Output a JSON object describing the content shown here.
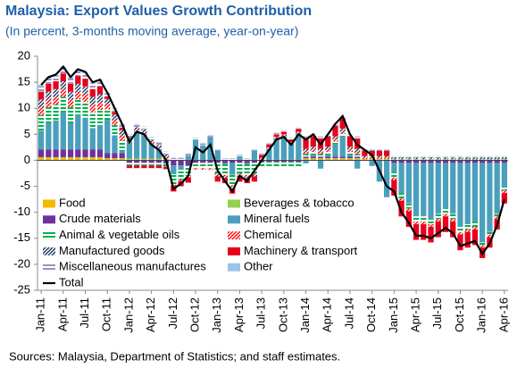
{
  "chart_data": {
    "type": "bar",
    "title": "Malaysia: Export Values Growth Contribution",
    "subtitle": "(In percent, 3-months moving average, year-on-year)",
    "source": "Sources: Malaysia, Department of Statistics; and staff estimates.",
    "stacked": true,
    "legend": "lower left",
    "ylim": [
      -25,
      20
    ],
    "yticks": [
      -25,
      -20,
      -15,
      -10,
      -5,
      0,
      5,
      10,
      15,
      20
    ],
    "categories": [
      "Jan-11",
      null,
      null,
      "Apr-11",
      null,
      null,
      "Jul-11",
      null,
      null,
      "Oct-11",
      null,
      null,
      "Jan-12",
      null,
      null,
      "Apr-12",
      null,
      null,
      "Jul-12",
      null,
      null,
      "Oct-12",
      null,
      null,
      "Jan-13",
      null,
      null,
      "Apr-13",
      null,
      null,
      "Jul-13",
      null,
      null,
      "Oct-13",
      null,
      null,
      "Jan-14",
      null,
      null,
      "Apr-14",
      null,
      null,
      "Jul-14",
      null,
      null,
      "Oct-14",
      null,
      null,
      "Jan-15",
      null,
      null,
      "Apr-15",
      null,
      null,
      "Jul-15",
      null,
      null,
      "Oct-15",
      null,
      null,
      "Jan-16",
      null,
      null,
      "Apr-16"
    ],
    "series": [
      {
        "name": "Food",
        "color": "#f5b800",
        "values": [
          0.5,
          0.5,
          0.5,
          0.5,
          0.5,
          0.5,
          0.5,
          0.5,
          0.5,
          0.3,
          0.3,
          0.3,
          0.2,
          0.2,
          0.2,
          0.2,
          0.2,
          0.2,
          0,
          0,
          0,
          0,
          0,
          0,
          0,
          0,
          0,
          0,
          0,
          0,
          0,
          0,
          0,
          0,
          0,
          0,
          0.3,
          0.3,
          0.3,
          0.3,
          0.3,
          0.3,
          0.3,
          0.3,
          0.2,
          0.2,
          0.2,
          0.2,
          0.1,
          0.1,
          0.1,
          0.1,
          0.1,
          0.1,
          0.1,
          0.1,
          0.1,
          0.1,
          0.1,
          0.1,
          0.1,
          0.1,
          0.1,
          0.1
        ]
      },
      {
        "name": "Beverages & tobacco",
        "color": "#92d050",
        "values": [
          0.1,
          0.1,
          0.1,
          0.1,
          0.1,
          0.1,
          0.1,
          0.1,
          0.1,
          0.1,
          0.1,
          0.1,
          0.1,
          0.1,
          0.1,
          0.1,
          0.1,
          0.1,
          0.1,
          0.1,
          0.1,
          0.1,
          0.1,
          0.1,
          0.1,
          0.1,
          0.1,
          0.1,
          0.1,
          0.1,
          0.1,
          0.1,
          0.1,
          0.1,
          0.1,
          0.1,
          0.1,
          0.1,
          0.1,
          0.1,
          0.1,
          0.1,
          0.1,
          0.1,
          0.1,
          0.1,
          0.1,
          0.1,
          0.1,
          0.1,
          0.1,
          0.1,
          0.1,
          0.1,
          0.1,
          0.1,
          0.1,
          0.1,
          0.1,
          0.1,
          0.1,
          0.1,
          0.1,
          0.1
        ]
      },
      {
        "name": "Crude materials",
        "color": "#7030a0",
        "values": [
          1.5,
          1.5,
          1.5,
          1.5,
          1.5,
          1.5,
          1.5,
          1.5,
          1.5,
          1,
          1,
          1,
          -0.5,
          -0.5,
          -0.5,
          -0.5,
          -0.5,
          -0.5,
          -1,
          -1,
          -1,
          -0.5,
          -0.5,
          -0.5,
          -0.5,
          -0.5,
          -0.5,
          -0.5,
          -0.5,
          -0.5,
          -0.3,
          -0.3,
          -0.3,
          -0.3,
          -0.3,
          -0.3,
          0.3,
          0.3,
          0.3,
          0.3,
          0.3,
          0.3,
          0.3,
          0.3,
          0,
          0,
          0,
          0,
          -0.5,
          -0.5,
          -0.5,
          -0.5,
          -0.5,
          -0.5,
          -0.5,
          -0.5,
          -0.5,
          -0.5,
          -0.5,
          -0.5,
          -0.5,
          -0.5,
          -0.5,
          -0.5
        ]
      },
      {
        "name": "Mineral fuels",
        "color": "#4a9fbd",
        "values": [
          3.6,
          5.1,
          5.6,
          7.1,
          5.1,
          6.6,
          6.1,
          4.1,
          4.6,
          6.4,
          3.4,
          0.4,
          3.3,
          5.3,
          4.8,
          2.8,
          1.8,
          -0.2,
          -1.7,
          -0.7,
          0.8,
          3.8,
          2.8,
          4.3,
          1.7,
          -0.3,
          -2.3,
          0.7,
          -0.3,
          1.7,
          0.1,
          2.1,
          4.1,
          4.6,
          3.1,
          5.1,
          -0.6,
          0.4,
          -1.6,
          0.4,
          2.4,
          3.9,
          0.4,
          -1.6,
          -0.1,
          -1.1,
          -4.1,
          -7.1,
          -1.8,
          -5.8,
          -7.8,
          -10.3,
          -10.3,
          -10.8,
          -9.8,
          -8.8,
          -9.8,
          -12.3,
          -11.8,
          -11.3,
          -15.3,
          -13.3,
          -9.8,
          -4.8
        ]
      },
      {
        "name": "Animal & vegetable oils",
        "color": "#00b050",
        "pattern": "horizontal",
        "values": [
          3,
          3,
          3,
          3,
          3,
          3,
          3,
          3,
          3,
          2,
          2,
          2,
          -0.5,
          -0.5,
          -0.5,
          -0.5,
          -0.5,
          -0.5,
          -2,
          -2,
          -2,
          -1,
          -1,
          -1,
          -2,
          -2,
          -2,
          -2,
          -2,
          -2,
          -1,
          -1,
          -1,
          -1,
          -1,
          -1,
          0.5,
          0.5,
          0.5,
          0.5,
          0.5,
          0.5,
          0.5,
          0.5,
          0,
          0,
          0,
          0,
          -1,
          -1,
          -1,
          -1,
          -1,
          -1,
          -1,
          -1,
          -1,
          -1,
          -1,
          -1,
          -0.5,
          -0.5,
          -0.5,
          -0.5
        ]
      },
      {
        "name": "Chemical",
        "color": "#ff0000",
        "pattern": "diagonal",
        "values": [
          1.5,
          1.5,
          1.5,
          1.5,
          1.5,
          1.5,
          1.5,
          1.5,
          1.5,
          1,
          1,
          1,
          0.3,
          0.3,
          0.3,
          0.3,
          0.3,
          0.3,
          -0.3,
          -0.3,
          -0.3,
          -0.3,
          -0.3,
          -0.3,
          -0.3,
          -0.3,
          -0.3,
          -0.3,
          -0.3,
          -0.3,
          0.3,
          0.3,
          0.3,
          0.3,
          0.3,
          0.3,
          0.5,
          0.5,
          0.5,
          0.5,
          0.5,
          0.5,
          0.5,
          0.5,
          0.2,
          0.2,
          0.2,
          0.2,
          -0.5,
          -0.5,
          -0.5,
          -0.5,
          -0.5,
          -0.5,
          -0.5,
          -0.5,
          -0.5,
          -0.5,
          -0.5,
          -0.5,
          -0.5,
          -0.5,
          -0.5,
          -0.5
        ]
      },
      {
        "name": "Manufactured goods",
        "color": "#1f3864",
        "pattern": "diagonal",
        "values": [
          1.5,
          1.5,
          1.5,
          1.5,
          1.5,
          1.5,
          1.5,
          1.5,
          1.5,
          1,
          1,
          1,
          0.5,
          0.5,
          0.5,
          0.5,
          0.5,
          0.5,
          0,
          0,
          0,
          0,
          0,
          0,
          -0.3,
          -0.3,
          -0.3,
          -0.3,
          -0.3,
          -0.3,
          0,
          0,
          0,
          0,
          0,
          0,
          0.5,
          0.5,
          0.5,
          0.5,
          0.5,
          0.5,
          0.5,
          0.5,
          0.3,
          0.3,
          0.3,
          0.3,
          0.3,
          0.3,
          0.3,
          0.3,
          0.3,
          0.3,
          0.3,
          0.3,
          0.3,
          0.3,
          0.3,
          0.3,
          0.3,
          0.3,
          0.3,
          0.3
        ]
      },
      {
        "name": "Machinery & transport",
        "color": "#e8001c",
        "values": [
          1.5,
          1.5,
          1.5,
          1.5,
          1.5,
          1.5,
          1.5,
          1.5,
          1.5,
          0.5,
          0.5,
          0.5,
          -0.5,
          -0.5,
          -0.5,
          -0.5,
          -0.5,
          -0.5,
          -1,
          -1,
          -1,
          0,
          0,
          0,
          -1,
          -1,
          -1,
          -1,
          -1,
          -1,
          0.5,
          0.5,
          0.5,
          0.5,
          0.5,
          0.5,
          2,
          2,
          2,
          2,
          2,
          2,
          2,
          2,
          1,
          1,
          1,
          1,
          -3,
          -3,
          -3,
          -3,
          -3,
          -3,
          -3,
          -3,
          -3,
          -3,
          -3,
          -3,
          -2,
          -2,
          -2,
          -2
        ]
      },
      {
        "name": "Miscellaneous manufactures",
        "color": "#9a8fc4",
        "pattern": "horizontal",
        "values": [
          1,
          1,
          1,
          1,
          1,
          1,
          1,
          1,
          1,
          0.5,
          0.5,
          0.5,
          0.5,
          0.5,
          0.5,
          0.5,
          0.5,
          0.5,
          0.3,
          0.3,
          0.3,
          0.3,
          0.3,
          0.3,
          0.2,
          0.2,
          0.2,
          0.2,
          0.2,
          0.2,
          0.2,
          0.2,
          0.2,
          0.2,
          0.2,
          0.2,
          0.3,
          0.3,
          0.3,
          0.3,
          0.3,
          0.3,
          0.3,
          0.3,
          0.2,
          0.2,
          0.2,
          0.2,
          0.2,
          0.2,
          0.2,
          0.2,
          0.2,
          0.2,
          0.2,
          0.2,
          0.2,
          0.2,
          0.2,
          0.2,
          0.2,
          0.2,
          0.2,
          0.2
        ]
      },
      {
        "name": "Other",
        "color": "#9dc3e6",
        "values": [
          0.3,
          0.3,
          0.3,
          0.3,
          0.3,
          0.3,
          0.3,
          0.3,
          0.3,
          0.2,
          0.2,
          0.2,
          0.1,
          0.1,
          0.1,
          0.1,
          0.1,
          0.1,
          0.1,
          0.1,
          0.1,
          0.1,
          0.1,
          0.1,
          0.1,
          0.1,
          0.1,
          0.1,
          0.1,
          0.1,
          0.1,
          0.1,
          0.1,
          0.1,
          0.1,
          0.1,
          0.1,
          0.1,
          0.1,
          0.1,
          0.1,
          0.1,
          0.1,
          0.1,
          0.1,
          0.1,
          0.1,
          0.1,
          0.1,
          0.1,
          0.1,
          0.1,
          0.1,
          0.1,
          0.1,
          0.1,
          0.1,
          0.1,
          0.1,
          0.1,
          0.1,
          0.1,
          0.1,
          0.1
        ]
      },
      {
        "name": "Total",
        "color": "#000000",
        "style": "line",
        "values": [
          14.5,
          16,
          16.5,
          18,
          16,
          17.5,
          17,
          15,
          15.5,
          13,
          10,
          7,
          3.5,
          5.5,
          5,
          3,
          2,
          0,
          -5.5,
          -4.5,
          -3,
          2.5,
          1.5,
          3,
          -2,
          -4,
          -6,
          -3,
          -4,
          -2,
          0,
          2,
          4,
          4.5,
          3,
          5,
          4,
          5,
          3,
          5,
          7,
          8.5,
          5,
          3,
          2,
          1,
          -2,
          -5,
          -6,
          -10,
          -12,
          -14.5,
          -14.5,
          -15,
          -14,
          -13,
          -14,
          -16.5,
          -16,
          -15.5,
          -18,
          -16,
          -12.5,
          -7.5
        ]
      }
    ]
  }
}
